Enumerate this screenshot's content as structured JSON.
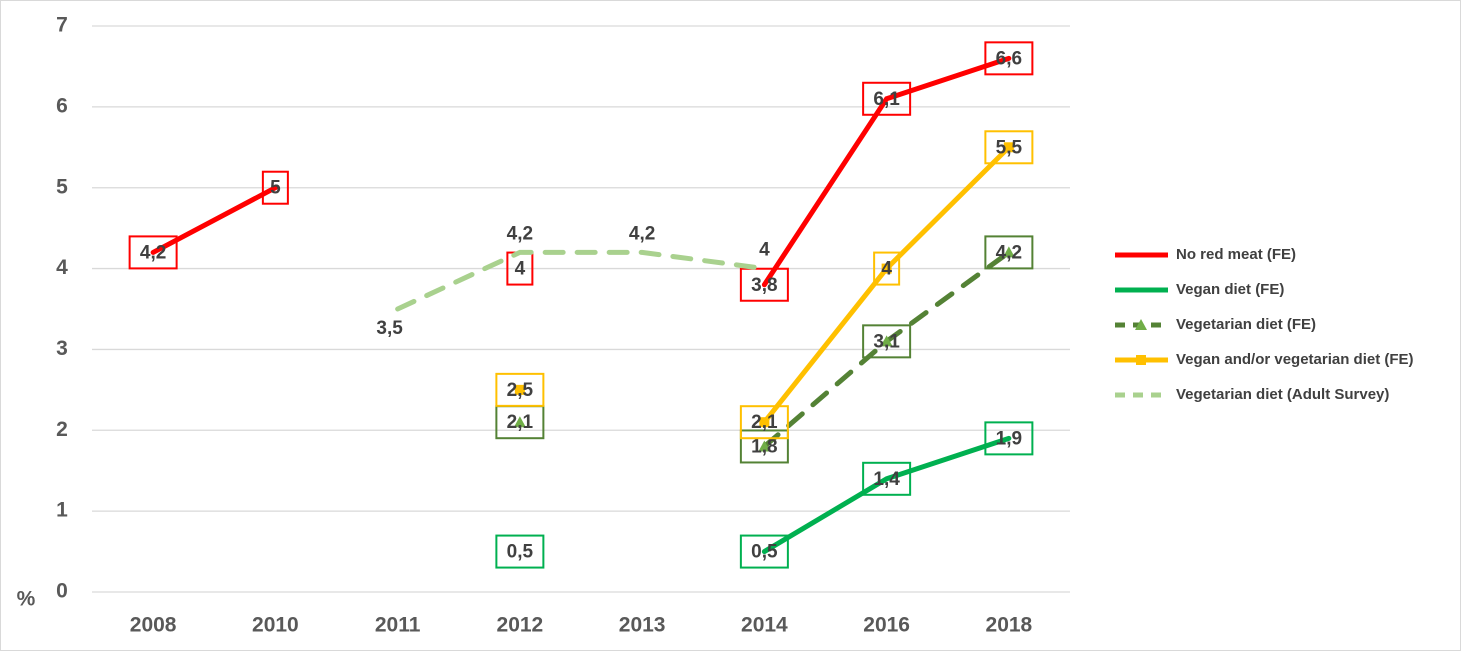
{
  "chart_data": {
    "type": "line",
    "categories": [
      "2008",
      "2010",
      "2011",
      "2012",
      "2013",
      "2014",
      "2016",
      "2018"
    ],
    "y_label": "%",
    "ylim": [
      0,
      7
    ],
    "yticks": [
      0,
      1,
      2,
      3,
      4,
      5,
      6,
      7
    ],
    "grid": true,
    "legend": "right",
    "series": [
      {
        "name": "No red meat (FE)",
        "color": "#ff0000",
        "dashed": false,
        "marker": "none",
        "label_box": true,
        "values": [
          4.2,
          5,
          null,
          4,
          null,
          3.8,
          6.1,
          6.6
        ],
        "value_labels": [
          "4,2",
          "5",
          null,
          "4",
          null,
          "3,8",
          "6,1",
          "6,6"
        ]
      },
      {
        "name": "Vegan diet (FE)",
        "color": "#00b050",
        "dashed": false,
        "marker": "none",
        "label_box": true,
        "values": [
          null,
          null,
          null,
          0.5,
          null,
          0.5,
          1.4,
          1.9
        ],
        "value_labels": [
          null,
          null,
          null,
          "0,5",
          null,
          "0,5",
          "1,4",
          "1,9"
        ]
      },
      {
        "name": "Vegetarian diet (FE)",
        "color": "#548235",
        "dashed": true,
        "marker": "triangle",
        "label_box": true,
        "values": [
          null,
          null,
          null,
          2.1,
          null,
          1.8,
          3.1,
          4.2
        ],
        "value_labels": [
          null,
          null,
          null,
          "2,1",
          null,
          "1,8",
          "3,1",
          "4,2"
        ]
      },
      {
        "name": "Vegan and/or vegetarian diet (FE)",
        "color": "#ffc000",
        "dashed": false,
        "marker": "square",
        "label_box": true,
        "values": [
          null,
          null,
          null,
          2.5,
          null,
          2.1,
          4,
          5.5
        ],
        "value_labels": [
          null,
          null,
          null,
          "2,5",
          null,
          "2,1",
          "4",
          "5,5"
        ]
      },
      {
        "name": "Vegetarian diet (Adult Survey)",
        "color": "#a9d18e",
        "dashed": true,
        "marker": "none",
        "label_box": false,
        "values": [
          null,
          null,
          3.5,
          4.2,
          4.2,
          4,
          null,
          null
        ],
        "value_labels": [
          null,
          null,
          "3,5",
          "4,2",
          "4,2",
          "4",
          null,
          null
        ]
      }
    ]
  }
}
